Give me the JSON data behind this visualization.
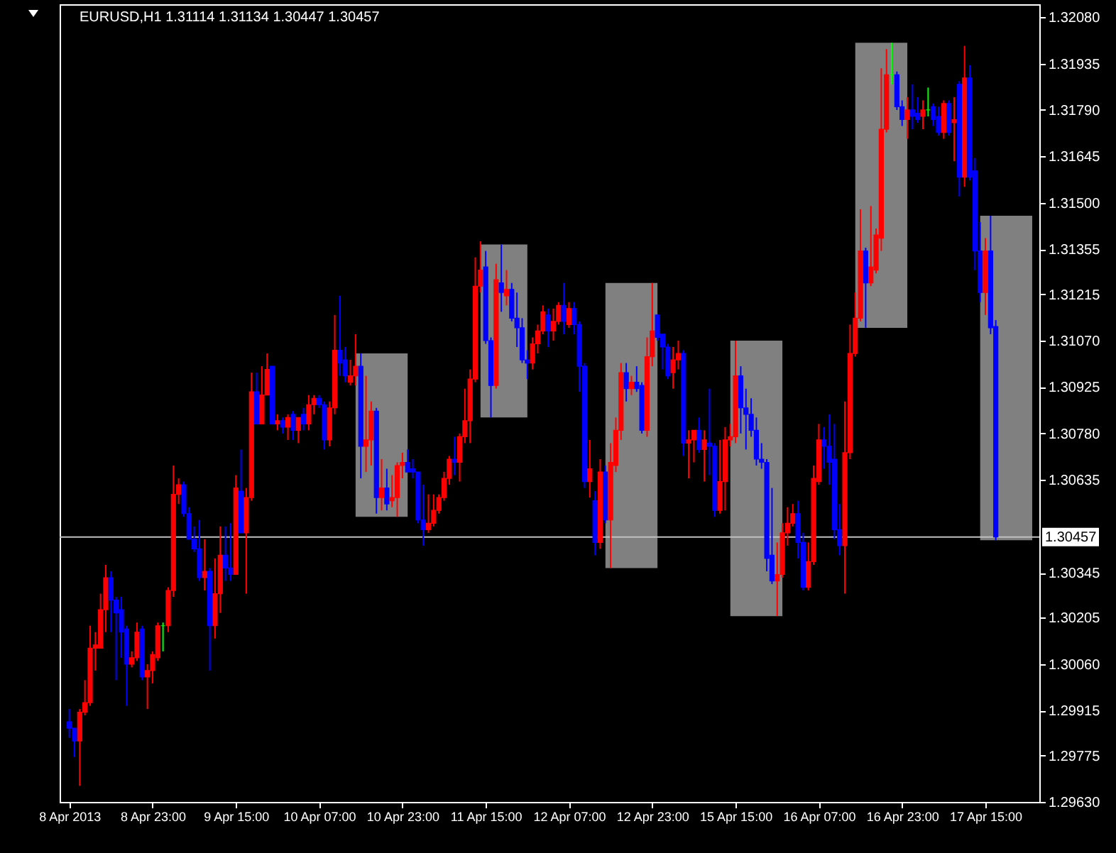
{
  "chart_data": {
    "type": "candlestick",
    "title": "EURUSD,H1  1.31114 1.31134 1.30447 1.30457",
    "categories": [
      "8 Apr 2013",
      null,
      null,
      null,
      null,
      null,
      null,
      null,
      null,
      null,
      null,
      null,
      null,
      null,
      null,
      null,
      "8 Apr 23:00",
      null,
      null,
      null,
      null,
      null,
      null,
      null,
      null,
      null,
      null,
      null,
      null,
      null,
      null,
      null,
      "9 Apr 15:00",
      null,
      null,
      null,
      null,
      null,
      null,
      null,
      null,
      null,
      null,
      null,
      null,
      null,
      null,
      null,
      "10 Apr 07:00",
      null,
      null,
      null,
      null,
      null,
      null,
      null,
      null,
      null,
      null,
      null,
      null,
      null,
      null,
      null,
      "10 Apr 23:00",
      null,
      null,
      null,
      null,
      null,
      null,
      null,
      null,
      null,
      null,
      null,
      null,
      null,
      null,
      null,
      "11 Apr 15:00",
      null,
      null,
      null,
      null,
      null,
      null,
      null,
      null,
      null,
      null,
      null,
      null,
      null,
      null,
      null,
      "12 Apr 07:00",
      null,
      null,
      null,
      null,
      null,
      null,
      null,
      null,
      null,
      null,
      null,
      null,
      null,
      null,
      null,
      "12 Apr 23:00",
      null,
      null,
      null,
      null,
      null,
      null,
      null,
      null,
      null,
      null,
      null,
      null,
      null,
      null,
      null,
      "15 Apr 15:00",
      null,
      null,
      null,
      null,
      null,
      null,
      null,
      null,
      null,
      null,
      null,
      null,
      null,
      null,
      null,
      "16 Apr 07:00",
      null,
      null,
      null,
      null,
      null,
      null,
      null,
      null,
      null,
      null,
      null,
      null,
      null,
      null,
      null,
      "16 Apr 23:00",
      null,
      null,
      null,
      null,
      null,
      null,
      null,
      null,
      null,
      null,
      null,
      null,
      null,
      null,
      null,
      "17 Apr 15:00",
      null,
      null
    ],
    "ohlc": [
      [
        1.2988,
        1.2992,
        1.2983,
        1.2986
      ],
      [
        1.2986,
        1.2986,
        1.2977,
        1.2982
      ],
      [
        1.2982,
        1.2992,
        1.2968,
        1.2991
      ],
      [
        1.2991,
        1.3001,
        1.299,
        1.2994
      ],
      [
        1.2994,
        1.3018,
        1.2993,
        1.3011
      ],
      [
        1.3011,
        1.3016,
        1.3004,
        1.3012
      ],
      [
        1.3011,
        1.3028,
        1.3011,
        1.3023
      ],
      [
        1.3023,
        1.3037,
        1.3016,
        1.3033
      ],
      [
        1.3033,
        1.3035,
        1.3016,
        1.3026
      ],
      [
        1.3026,
        1.3027,
        1.3001,
        1.3022
      ],
      [
        1.3023,
        1.3027,
        1.3008,
        1.3016
      ],
      [
        1.3017,
        1.3018,
        1.2993,
        1.3006
      ],
      [
        1.3006,
        1.301,
        1.3005,
        1.3008
      ],
      [
        1.3008,
        1.3019,
        1.3007,
        1.3016
      ],
      [
        1.3017,
        1.3018,
        1.3001,
        1.3002
      ],
      [
        1.3002,
        1.3006,
        1.2992,
        1.3004
      ],
      [
        1.3004,
        1.301,
        1.3,
        1.3009
      ],
      [
        1.3008,
        1.3019,
        1.3007,
        1.3018
      ],
      [
        1.3018,
        1.3019,
        1.301,
        1.3018
      ],
      [
        1.3018,
        1.303,
        1.3016,
        1.3029
      ],
      [
        1.3029,
        1.3068,
        1.3027,
        1.3059
      ],
      [
        1.3059,
        1.3064,
        1.3056,
        1.3062
      ],
      [
        1.3062,
        1.3063,
        1.3052,
        1.3053
      ],
      [
        1.3053,
        1.3055,
        1.3045,
        1.3045
      ],
      [
        1.3045,
        1.3049,
        1.3041,
        1.3042
      ],
      [
        1.3042,
        1.3051,
        1.3032,
        1.3033
      ],
      [
        1.3033,
        1.3045,
        1.3029,
        1.3035
      ],
      [
        1.3035,
        1.3036,
        1.3004,
        1.3018
      ],
      [
        1.3018,
        1.3039,
        1.3014,
        1.3028
      ],
      [
        1.3028,
        1.3049,
        1.3022,
        1.304
      ],
      [
        1.304,
        1.3049,
        1.3032,
        1.3036
      ],
      [
        1.3036,
        1.305,
        1.3032,
        1.3034
      ],
      [
        1.3034,
        1.3065,
        1.3034,
        1.3061
      ],
      [
        1.306,
        1.3073,
        1.3047,
        1.3047
      ],
      [
        1.3047,
        1.3061,
        1.3028,
        1.3058
      ],
      [
        1.3058,
        1.3097,
        1.3057,
        1.3091
      ],
      [
        1.3091,
        1.3097,
        1.3081,
        1.3081
      ],
      [
        1.3081,
        1.3099,
        1.3081,
        1.309
      ],
      [
        1.309,
        1.3103,
        1.309,
        1.3098
      ],
      [
        1.3099,
        1.3099,
        1.3081,
        1.3081
      ],
      [
        1.3081,
        1.3084,
        1.3079,
        1.3082
      ],
      [
        1.3082,
        1.3083,
        1.3078,
        1.308
      ],
      [
        1.308,
        1.3084,
        1.3076,
        1.3083
      ],
      [
        1.3084,
        1.3085,
        1.3076,
        1.3079
      ],
      [
        1.3079,
        1.3083,
        1.3075,
        1.3083
      ],
      [
        1.3084,
        1.3086,
        1.3079,
        1.3081
      ],
      [
        1.3081,
        1.309,
        1.3079,
        1.3087
      ],
      [
        1.3087,
        1.309,
        1.3084,
        1.3089
      ],
      [
        1.3089,
        1.309,
        1.3086,
        1.3087
      ],
      [
        1.3087,
        1.3088,
        1.3073,
        1.3076
      ],
      [
        1.3076,
        1.3088,
        1.3074,
        1.3086
      ],
      [
        1.3086,
        1.3115,
        1.3084,
        1.3104
      ],
      [
        1.3104,
        1.3121,
        1.3096,
        1.31
      ],
      [
        1.3101,
        1.3105,
        1.3094,
        1.3096
      ],
      [
        1.3094,
        1.3101,
        1.3093,
        1.3096
      ],
      [
        1.3096,
        1.3109,
        1.3093,
        1.3099
      ],
      [
        1.3099,
        1.3103,
        1.3064,
        1.3074
      ],
      [
        1.3074,
        1.3096,
        1.3066,
        1.3076
      ],
      [
        1.3076,
        1.3088,
        1.3068,
        1.3085
      ],
      [
        1.3085,
        1.3086,
        1.3053,
        1.3058
      ],
      [
        1.3058,
        1.307,
        1.3054,
        1.3061
      ],
      [
        1.3061,
        1.3067,
        1.3054,
        1.3056
      ],
      [
        1.3057,
        1.3065,
        1.3055,
        1.3058
      ],
      [
        1.3058,
        1.3069,
        1.3052,
        1.3068
      ],
      [
        1.3068,
        1.3072,
        1.3064,
        1.3069
      ],
      [
        1.3069,
        1.3073,
        1.3066,
        1.3066
      ],
      [
        1.3067,
        1.307,
        1.3064,
        1.3066
      ],
      [
        1.3066,
        1.3066,
        1.305,
        1.3051
      ],
      [
        1.3051,
        1.3062,
        1.3043,
        1.3048
      ],
      [
        1.3048,
        1.3059,
        1.3047,
        1.305
      ],
      [
        1.305,
        1.3059,
        1.3049,
        1.3054
      ],
      [
        1.3054,
        1.3059,
        1.3053,
        1.3058
      ],
      [
        1.3058,
        1.3066,
        1.3057,
        1.3064
      ],
      [
        1.3064,
        1.3071,
        1.3062,
        1.307
      ],
      [
        1.307,
        1.3077,
        1.3065,
        1.3069
      ],
      [
        1.3069,
        1.3078,
        1.3063,
        1.3077
      ],
      [
        1.3077,
        1.3092,
        1.3075,
        1.3082
      ],
      [
        1.3082,
        1.3098,
        1.3075,
        1.3095
      ],
      [
        1.3095,
        1.3133,
        1.3094,
        1.3124
      ],
      [
        1.3124,
        1.3138,
        1.3122,
        1.3129
      ],
      [
        1.313,
        1.3135,
        1.3106,
        1.3107
      ],
      [
        1.3107,
        1.3108,
        1.3083,
        1.3093
      ],
      [
        1.3093,
        1.3131,
        1.3092,
        1.3126
      ],
      [
        1.3125,
        1.3137,
        1.3116,
        1.3122
      ],
      [
        1.3121,
        1.3129,
        1.3118,
        1.3123
      ],
      [
        1.3123,
        1.3125,
        1.3113,
        1.3114
      ],
      [
        1.3114,
        1.3122,
        1.3105,
        1.3111
      ],
      [
        1.3111,
        1.3114,
        1.31,
        1.3101
      ],
      [
        1.3101,
        1.3104,
        1.3095,
        1.31
      ],
      [
        1.31,
        1.3108,
        1.3098,
        1.3106
      ],
      [
        1.3106,
        1.3112,
        1.3103,
        1.311
      ],
      [
        1.311,
        1.3118,
        1.3109,
        1.3116
      ],
      [
        1.3115,
        1.3117,
        1.3105,
        1.311
      ],
      [
        1.311,
        1.3117,
        1.3107,
        1.3113
      ],
      [
        1.3113,
        1.3119,
        1.3112,
        1.3118
      ],
      [
        1.3118,
        1.3125,
        1.3109,
        1.3113
      ],
      [
        1.3112,
        1.3119,
        1.3111,
        1.3117
      ],
      [
        1.3117,
        1.3119,
        1.3109,
        1.3112
      ],
      [
        1.3112,
        1.3113,
        1.3091,
        1.3099
      ],
      [
        1.3099,
        1.31,
        1.3061,
        1.3063
      ],
      [
        1.3063,
        1.3076,
        1.3058,
        1.3067
      ],
      [
        1.3057,
        1.306,
        1.304,
        1.3044
      ],
      [
        1.3044,
        1.307,
        1.3042,
        1.3066
      ],
      [
        1.3066,
        1.3068,
        1.305,
        1.3051
      ],
      [
        1.3051,
        1.3075,
        1.3036,
        1.3069
      ],
      [
        1.3068,
        1.3083,
        1.3066,
        1.3079
      ],
      [
        1.3079,
        1.31,
        1.3076,
        1.3097
      ],
      [
        1.3097,
        1.31,
        1.3088,
        1.3092
      ],
      [
        1.3092,
        1.3096,
        1.309,
        1.3094
      ],
      [
        1.3094,
        1.3099,
        1.3091,
        1.3092
      ],
      [
        1.3093,
        1.3094,
        1.3078,
        1.3079
      ],
      [
        1.3079,
        1.3108,
        1.3077,
        1.3102
      ],
      [
        1.3102,
        1.3125,
        1.3099,
        1.311
      ],
      [
        1.3115,
        1.3115,
        1.3107,
        1.3108
      ],
      [
        1.3109,
        1.3109,
        1.3098,
        1.3105
      ],
      [
        1.3105,
        1.3106,
        1.3095,
        1.3096
      ],
      [
        1.3097,
        1.3105,
        1.3092,
        1.3101
      ],
      [
        1.3101,
        1.3107,
        1.3098,
        1.3103
      ],
      [
        1.3103,
        1.3104,
        1.3071,
        1.3075
      ],
      [
        1.3075,
        1.3079,
        1.3064,
        1.3076
      ],
      [
        1.3076,
        1.3079,
        1.3069,
        1.3079
      ],
      [
        1.3079,
        1.3083,
        1.3072,
        1.3073
      ],
      [
        1.3073,
        1.3079,
        1.3063,
        1.3076
      ],
      [
        1.3075,
        1.3092,
        1.3065,
        1.3074
      ],
      [
        1.3074,
        1.3075,
        1.3052,
        1.3054
      ],
      [
        1.3054,
        1.3076,
        1.3053,
        1.3063
      ],
      [
        1.3063,
        1.308,
        1.3054,
        1.3076
      ],
      [
        1.3076,
        1.3081,
        1.3074,
        1.3077
      ],
      [
        1.3077,
        1.3107,
        1.3075,
        1.3096
      ],
      [
        1.3096,
        1.3099,
        1.3078,
        1.3086
      ],
      [
        1.3086,
        1.3092,
        1.3073,
        1.3084
      ],
      [
        1.3084,
        1.3089,
        1.3077,
        1.3079
      ],
      [
        1.3079,
        1.3083,
        1.3068,
        1.307
      ],
      [
        1.307,
        1.3075,
        1.3067,
        1.3069
      ],
      [
        1.3069,
        1.307,
        1.3035,
        1.3039
      ],
      [
        1.304,
        1.3061,
        1.3031,
        1.3032
      ],
      [
        1.3032,
        1.3044,
        1.3021,
        1.3034
      ],
      [
        1.3034,
        1.305,
        1.3033,
        1.3047
      ],
      [
        1.3047,
        1.3055,
        1.3043,
        1.305
      ],
      [
        1.305,
        1.3056,
        1.3049,
        1.3053
      ],
      [
        1.3053,
        1.3057,
        1.3039,
        1.3044
      ],
      [
        1.3044,
        1.3047,
        1.3029,
        1.303
      ],
      [
        1.303,
        1.3044,
        1.3029,
        1.3038
      ],
      [
        1.3038,
        1.3068,
        1.3037,
        1.3064
      ],
      [
        1.3063,
        1.3081,
        1.3062,
        1.3076
      ],
      [
        1.3076,
        1.308,
        1.3067,
        1.3074
      ],
      [
        1.3074,
        1.3084,
        1.3062,
        1.3069
      ],
      [
        1.307,
        1.3081,
        1.3045,
        1.3048
      ],
      [
        1.3048,
        1.3056,
        1.304,
        1.3043
      ],
      [
        1.3043,
        1.3088,
        1.3028,
        1.3072
      ],
      [
        1.3072,
        1.3112,
        1.307,
        1.3103
      ],
      [
        1.3103,
        1.3122,
        1.3102,
        1.3114
      ],
      [
        1.3114,
        1.3148,
        1.3113,
        1.3135
      ],
      [
        1.3135,
        1.3136,
        1.3111,
        1.3125
      ],
      [
        1.3125,
        1.3149,
        1.3124,
        1.313
      ],
      [
        1.3129,
        1.3142,
        1.3128,
        1.314
      ],
      [
        1.3139,
        1.3192,
        1.3135,
        1.3173
      ],
      [
        1.3173,
        1.3198,
        1.3172,
        1.319
      ],
      [
        1.319,
        1.32,
        1.3187,
        1.319
      ],
      [
        1.319,
        1.3191,
        1.3179,
        1.318
      ],
      [
        1.318,
        1.3182,
        1.3174,
        1.3176
      ],
      [
        1.3176,
        1.3183,
        1.317,
        1.3179
      ],
      [
        1.3179,
        1.3187,
        1.3173,
        1.3177
      ],
      [
        1.3178,
        1.3183,
        1.3175,
        1.3176
      ],
      [
        1.3177,
        1.3182,
        1.3173,
        1.3179
      ],
      [
        1.3179,
        1.3186,
        1.3177,
        1.3179
      ],
      [
        1.318,
        1.3181,
        1.3174,
        1.3176
      ],
      [
        1.3177,
        1.318,
        1.3171,
        1.3172
      ],
      [
        1.3172,
        1.3182,
        1.317,
        1.3181
      ],
      [
        1.3181,
        1.3182,
        1.3171,
        1.3172
      ],
      [
        1.3175,
        1.3183,
        1.3163,
        1.3176
      ],
      [
        1.3187,
        1.3188,
        1.3152,
        1.3158
      ],
      [
        1.3158,
        1.3199,
        1.3155,
        1.3189
      ],
      [
        1.3189,
        1.3193,
        1.3157,
        1.3158
      ],
      [
        1.316,
        1.3164,
        1.3129,
        1.3135
      ],
      [
        1.3135,
        1.3144,
        1.3119,
        1.3122
      ],
      [
        1.3122,
        1.3139,
        1.3115,
        1.3135
      ],
      [
        1.3135,
        1.3146,
        1.3109,
        1.3111
      ],
      [
        1.31114,
        1.31134,
        1.30447,
        1.30457
      ]
    ],
    "colors": [
      "#0000ff",
      "#0000ff",
      "#ff0000",
      "#ff0000",
      "#ff0000",
      "#ff0000",
      "#ff0000",
      "#ff0000",
      "#0000ff",
      "#0000ff",
      "#0000ff",
      "#0000ff",
      "#ff0000",
      "#ff0000",
      "#0000ff",
      "#ff0000",
      "#ff0000",
      "#ff0000",
      "#00ff00",
      "#ff0000",
      "#ff0000",
      "#ff0000",
      "#0000ff",
      "#0000ff",
      "#0000ff",
      "#0000ff",
      "#ff0000",
      "#0000ff",
      "#ff0000",
      "#ff0000",
      "#0000ff",
      "#0000ff",
      "#ff0000",
      "#0000ff",
      "#ff0000",
      "#ff0000",
      "#0000ff",
      "#ff0000",
      "#ff0000",
      "#0000ff",
      "#ff0000",
      "#0000ff",
      "#ff0000",
      "#0000ff",
      "#ff0000",
      "#0000ff",
      "#ff0000",
      "#ff0000",
      "#0000ff",
      "#0000ff",
      "#ff0000",
      "#ff0000",
      "#0000ff",
      "#0000ff",
      "#ff0000",
      "#ff0000",
      "#0000ff",
      "#ff0000",
      "#ff0000",
      "#0000ff",
      "#ff0000",
      "#0000ff",
      "#ff0000",
      "#ff0000",
      "#ff0000",
      "#0000ff",
      "#0000ff",
      "#0000ff",
      "#0000ff",
      "#ff0000",
      "#ff0000",
      "#ff0000",
      "#ff0000",
      "#ff0000",
      "#0000ff",
      "#ff0000",
      "#ff0000",
      "#ff0000",
      "#ff0000",
      "#ff0000",
      "#0000ff",
      "#0000ff",
      "#ff0000",
      "#0000ff",
      "#ff0000",
      "#0000ff",
      "#0000ff",
      "#0000ff",
      "#0000ff",
      "#ff0000",
      "#ff0000",
      "#ff0000",
      "#0000ff",
      "#ff0000",
      "#ff0000",
      "#0000ff",
      "#ff0000",
      "#0000ff",
      "#0000ff",
      "#0000ff",
      "#ff0000",
      "#0000ff",
      "#ff0000",
      "#0000ff",
      "#ff0000",
      "#ff0000",
      "#ff0000",
      "#0000ff",
      "#ff0000",
      "#0000ff",
      "#0000ff",
      "#ff0000",
      "#ff0000",
      "#0000ff",
      "#0000ff",
      "#0000ff",
      "#ff0000",
      "#ff0000",
      "#0000ff",
      "#ff0000",
      "#ff0000",
      "#0000ff",
      "#ff0000",
      "#0000ff",
      "#0000ff",
      "#ff0000",
      "#ff0000",
      "#ff0000",
      "#ff0000",
      "#0000ff",
      "#0000ff",
      "#0000ff",
      "#0000ff",
      "#0000ff",
      "#0000ff",
      "#0000ff",
      "#ff0000",
      "#ff0000",
      "#ff0000",
      "#ff0000",
      "#0000ff",
      "#0000ff",
      "#ff0000",
      "#ff0000",
      "#ff0000",
      "#0000ff",
      "#0000ff",
      "#0000ff",
      "#0000ff",
      "#ff0000",
      "#ff0000",
      "#ff0000",
      "#ff0000",
      "#0000ff",
      "#ff0000",
      "#ff0000",
      "#ff0000",
      "#ff0000",
      "#00ff00",
      "#0000ff",
      "#0000ff",
      "#ff0000",
      "#0000ff",
      "#0000ff",
      "#ff0000",
      "#00ff00",
      "#0000ff",
      "#0000ff",
      "#ff0000",
      "#0000ff",
      "#ff0000",
      "#0000ff",
      "#ff0000",
      "#0000ff",
      "#0000ff",
      "#0000ff",
      "#ff0000",
      "#0000ff",
      "#0000ff"
    ],
    "ylim": [
      1.2963,
      1.3212
    ],
    "yticks": [
      {
        "value": 1.2963,
        "label": "1.29630"
      },
      {
        "value": 1.29775,
        "label": "1.29775"
      },
      {
        "value": 1.29915,
        "label": "1.29915"
      },
      {
        "value": 1.3006,
        "label": "1.30060"
      },
      {
        "value": 1.30205,
        "label": "1.30205"
      },
      {
        "value": 1.30345,
        "label": "1.30345"
      },
      {
        "value": 1.30635,
        "label": "1.30635"
      },
      {
        "value": 1.3078,
        "label": "1.30780"
      },
      {
        "value": 1.30925,
        "label": "1.30925"
      },
      {
        "value": 1.3107,
        "label": "1.31070"
      },
      {
        "value": 1.31215,
        "label": "1.31215"
      },
      {
        "value": 1.31355,
        "label": "1.31355"
      },
      {
        "value": 1.315,
        "label": "1.31500"
      },
      {
        "value": 1.31645,
        "label": "1.31645"
      },
      {
        "value": 1.3179,
        "label": "1.31790"
      },
      {
        "value": 1.31935,
        "label": "1.31935"
      },
      {
        "value": 1.3208,
        "label": "1.32080"
      }
    ],
    "ref_lines": [
      {
        "axis": "y",
        "value": 1.30457,
        "label": "1.30457",
        "color": "#c0c0c0"
      }
    ]
  }
}
